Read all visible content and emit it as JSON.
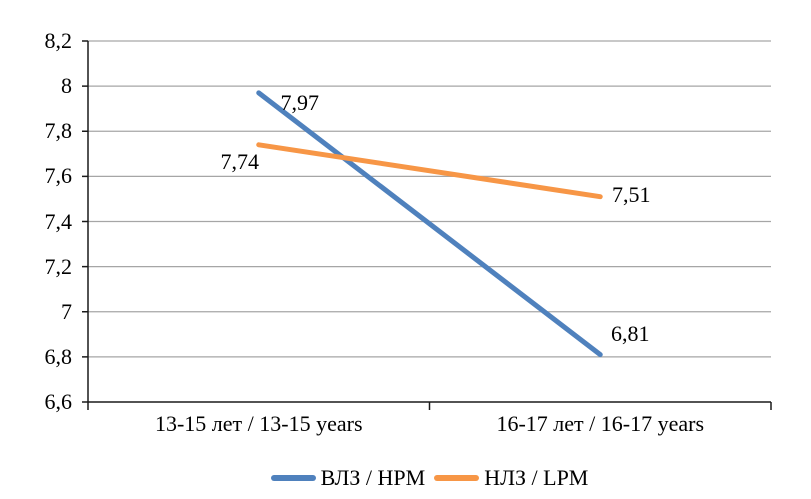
{
  "chart_data": {
    "type": "line",
    "categories": [
      "13-15 лет / 13-15 years",
      "16-17 лет / 16-17 years"
    ],
    "series": [
      {
        "name": "ВЛЗ / HPM",
        "values": [
          7.97,
          6.81
        ],
        "point_labels": [
          "7,97",
          "6,81"
        ],
        "color": "#4F81BD"
      },
      {
        "name": "НЛЗ / LPM",
        "values": [
          7.74,
          7.51
        ],
        "point_labels": [
          "7,74",
          "7,51"
        ],
        "color": "#F79646"
      }
    ],
    "title": "",
    "xlabel": "",
    "ylabel": "",
    "y_axis": {
      "min": 6.6,
      "max": 8.2,
      "step": 0.2,
      "tick_labels": [
        "6,6",
        "6,8",
        "7",
        "7,2",
        "7,4",
        "7,6",
        "7,8",
        "8",
        "8,2"
      ]
    },
    "grid": true,
    "legend_position": "bottom",
    "colors": {
      "gridline": "#A6A6A6",
      "axis": "#1a1a1a",
      "text": "#000000",
      "background": "#FFFFFF"
    }
  }
}
